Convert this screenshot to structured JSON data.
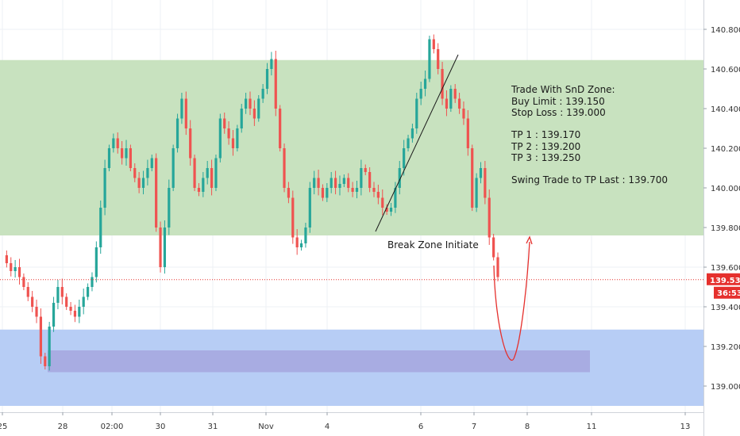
{
  "chart_data": {
    "type": "candlestick",
    "y_ticks": [
      "140.800",
      "140.600",
      "140.400",
      "140.200",
      "140.000",
      "139.800",
      "139.600",
      "139.400",
      "139.200",
      "139.000"
    ],
    "x_ticks": [
      "25",
      "28",
      "02:00",
      "30",
      "31",
      "Nov",
      "4",
      "6",
      "7",
      "8",
      "11",
      "13"
    ],
    "ylim": [
      138.87,
      140.95
    ],
    "zones": {
      "supply": {
        "low": 139.76,
        "high": 140.645,
        "color": "#c8e2bf"
      },
      "demand": {
        "low": 138.9,
        "high": 139.285,
        "color": "#b7cdf5"
      },
      "demand_inner": {
        "low": 139.07,
        "high": 139.18,
        "color": "#a6a6de"
      }
    },
    "current_price": {
      "label": "139.537",
      "value": 139.537,
      "color": "#e5302d"
    },
    "countdown": "36:53",
    "colors": {
      "up": "#26a69a",
      "down": "#ef5350",
      "trendline": "#1a1a1a",
      "projection": "#e5302d"
    },
    "annotations": {
      "break_zone": "Break Zone Initiate",
      "trade_title": "Trade With SnD Zone:",
      "buy_limit": "Buy Limit : 139.150",
      "stop_loss": "Stop Loss : 139.000",
      "tp1": "TP 1 : 139.170",
      "tp2": "TP 2 : 139.200",
      "tp3": "TP 3 : 139.250",
      "swing": "Swing Trade to TP Last : 139.700"
    },
    "price_path": [
      139.66,
      139.62,
      139.58,
      139.6,
      139.55,
      139.5,
      139.45,
      139.4,
      139.35,
      139.15,
      139.1,
      139.3,
      139.42,
      139.5,
      139.45,
      139.4,
      139.38,
      139.35,
      139.4,
      139.45,
      139.5,
      139.55,
      139.7,
      139.9,
      140.1,
      140.2,
      140.25,
      140.2,
      140.15,
      140.2,
      140.1,
      140.05,
      140.0,
      140.05,
      140.1,
      140.15,
      139.8,
      139.6,
      139.8,
      140.0,
      140.2,
      140.35,
      140.45,
      140.3,
      140.15,
      140.0,
      139.98,
      140.05,
      140.1,
      140.0,
      140.15,
      140.35,
      140.3,
      140.25,
      140.2,
      140.3,
      140.4,
      140.45,
      140.4,
      140.35,
      140.45,
      140.5,
      140.6,
      140.65,
      140.4,
      140.2,
      140.0,
      139.95,
      139.75,
      139.7,
      139.72,
      139.8,
      140.0,
      140.05,
      140.0,
      139.95,
      140.0,
      140.05,
      140.0,
      140.02,
      140.05,
      140.0,
      139.98,
      140.0,
      140.1,
      140.08,
      140.0,
      139.98,
      139.95,
      139.9,
      139.88,
      139.9,
      140.0,
      140.1,
      140.2,
      140.25,
      140.3,
      140.45,
      140.5,
      140.55,
      140.75,
      140.7,
      140.6,
      140.45,
      140.4,
      140.5,
      140.45,
      140.4,
      140.35,
      140.2,
      139.9,
      140.05,
      140.1,
      139.95,
      139.75,
      139.65,
      139.55
    ]
  }
}
